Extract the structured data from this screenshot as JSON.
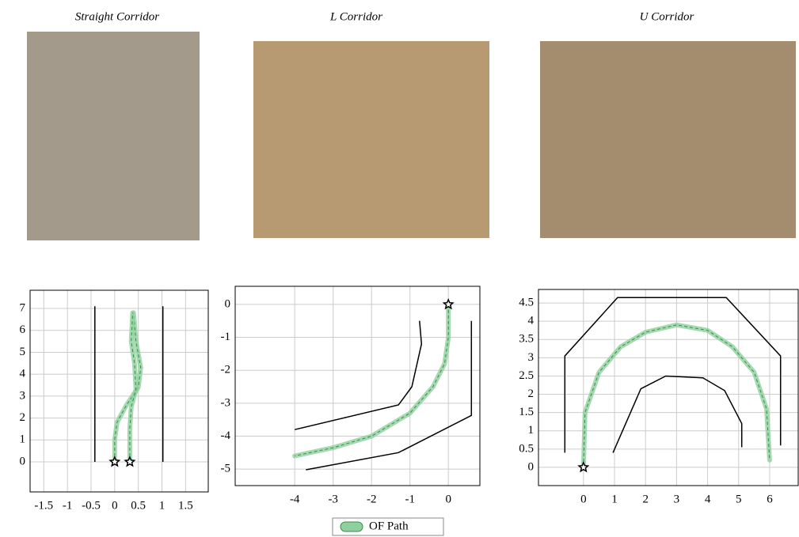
{
  "legend": {
    "label": "OF Path",
    "color": "#8fd19e"
  },
  "chart_data": [
    {
      "type": "line",
      "title": "Straight Corridor",
      "xlim": [
        -1.79,
        1.98
      ],
      "ylim": [
        -1.37,
        7.83
      ],
      "xticks": [
        -1.5,
        -1,
        -0.5,
        0,
        0.5,
        1,
        1.5
      ],
      "yticks": [
        0,
        1,
        2,
        3,
        4,
        5,
        6,
        7
      ],
      "grid": true,
      "series": [
        {
          "color": "#000000",
          "x": [
            -0.42,
            -0.42
          ],
          "values": [
            0,
            7.1
          ]
        },
        {
          "color": "#000000",
          "x": [
            1.02,
            1.02
          ],
          "values": [
            0,
            7.1
          ]
        },
        {
          "color": "#8fd19e",
          "style": "path",
          "x": [
            0,
            0,
            0.05,
            0.25,
            0.5,
            0.55,
            0.45,
            0.4
          ],
          "values": [
            0,
            1,
            1.8,
            2.6,
            3.4,
            4.3,
            5.5,
            6.8
          ]
        },
        {
          "color": "#8fd19e",
          "style": "path",
          "x": [
            0.32,
            0.32,
            0.35,
            0.45,
            0.42,
            0.35,
            0.38
          ],
          "values": [
            0,
            1.5,
            2.5,
            3.3,
            4.5,
            5.5,
            6.8
          ]
        },
        {
          "color": "#000000",
          "marker": "star",
          "x": [
            0,
            0.32
          ],
          "values": [
            0,
            0
          ]
        }
      ]
    },
    {
      "type": "line",
      "title": "L Corridor",
      "xlim": [
        -5.55,
        0.82
      ],
      "ylim": [
        -5.5,
        0.55
      ],
      "xticks": [
        -4,
        -3,
        -2,
        -1,
        0
      ],
      "yticks": [
        0,
        -1,
        -2,
        -3,
        -4,
        -5
      ],
      "grid": true,
      "series": [
        {
          "color": "#000000",
          "x": [
            -0.75,
            -0.7,
            -0.95,
            -1.3,
            -4
          ],
          "values": [
            -0.5,
            -1.2,
            -2.5,
            -3.05,
            -3.8
          ]
        },
        {
          "color": "#000000",
          "x": [
            0.6,
            0.6,
            -1.3,
            -3.71
          ],
          "values": [
            -0.5,
            -3.37,
            -4.5,
            -5.02
          ]
        },
        {
          "color": "#8fd19e",
          "style": "path",
          "x": [
            0,
            0,
            -0.1,
            -0.4,
            -1,
            -2,
            -3,
            -4
          ],
          "values": [
            0,
            -1,
            -1.8,
            -2.5,
            -3.3,
            -4,
            -4.35,
            -4.6
          ]
        },
        {
          "color": "#000000",
          "marker": "star",
          "x": [
            0
          ],
          "values": [
            0
          ]
        }
      ]
    },
    {
      "type": "line",
      "title": "U Corridor",
      "xlim": [
        -1.45,
        6.92
      ],
      "ylim": [
        -0.5,
        4.87
      ],
      "xticks": [
        0,
        1,
        2,
        3,
        4,
        5,
        6
      ],
      "yticks": [
        0,
        0.5,
        1,
        1.5,
        2,
        2.5,
        3,
        3.5,
        4,
        4.5
      ],
      "grid": true,
      "series": [
        {
          "color": "#000000",
          "x": [
            -0.6,
            -0.6,
            1.1,
            4.6,
            6.35,
            6.35
          ],
          "values": [
            0.4,
            3.05,
            4.65,
            4.65,
            3.05,
            0.6
          ]
        },
        {
          "color": "#000000",
          "x": [
            0.95,
            1.85,
            2.65,
            3.85,
            4.55,
            5.1,
            5.1
          ],
          "values": [
            0.4,
            2.15,
            2.5,
            2.45,
            2.1,
            1.2,
            0.55
          ]
        },
        {
          "color": "#8fd19e",
          "style": "path",
          "x": [
            0,
            0.05,
            0.5,
            1.2,
            2,
            3,
            4,
            4.8,
            5.5,
            5.9,
            6
          ],
          "values": [
            0,
            1.5,
            2.6,
            3.3,
            3.7,
            3.9,
            3.75,
            3.3,
            2.6,
            1.6,
            0.2
          ]
        },
        {
          "color": "#000000",
          "marker": "star",
          "x": [
            0
          ],
          "values": [
            0
          ]
        }
      ]
    }
  ]
}
